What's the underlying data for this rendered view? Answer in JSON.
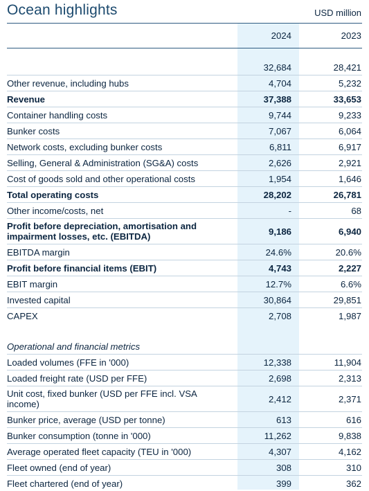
{
  "header": {
    "title": "Ocean highlights",
    "unit": "USD million"
  },
  "columns": [
    "2024",
    "2023"
  ],
  "rows": [
    {
      "label": "",
      "v2024": "32,684",
      "v2023": "28,421",
      "bold": false
    },
    {
      "label": "Other revenue, including hubs",
      "v2024": "4,704",
      "v2023": "5,232",
      "bold": false
    },
    {
      "label": "Revenue",
      "v2024": "37,388",
      "v2023": "33,653",
      "bold": true
    },
    {
      "label": "Container handling costs",
      "v2024": "9,744",
      "v2023": "9,233",
      "bold": false
    },
    {
      "label": "Bunker costs",
      "v2024": "7,067",
      "v2023": "6,064",
      "bold": false
    },
    {
      "label": "Network costs, excluding bunker costs",
      "v2024": "6,811",
      "v2023": "6,917",
      "bold": false
    },
    {
      "label": "Selling, General & Administration (SG&A) costs",
      "v2024": "2,626",
      "v2023": "2,921",
      "bold": false
    },
    {
      "label": "Cost of goods sold and other operational costs",
      "v2024": "1,954",
      "v2023": "1,646",
      "bold": false
    },
    {
      "label": "Total operating costs",
      "v2024": "28,202",
      "v2023": "26,781",
      "bold": true
    },
    {
      "label": "Other income/costs, net",
      "v2024": "-",
      "v2023": "68",
      "bold": false
    },
    {
      "label": "Profit before depreciation, amortisation and impairment losses, etc. (EBITDA)",
      "v2024": "9,186",
      "v2023": "6,940",
      "bold": true
    },
    {
      "label": "EBITDA margin",
      "v2024": "24.6%",
      "v2023": "20.6%",
      "bold": false
    },
    {
      "label": "Profit before financial items (EBIT)",
      "v2024": "4,743",
      "v2023": "2,227",
      "bold": true
    },
    {
      "label": "EBIT margin",
      "v2024": "12.7%",
      "v2023": "6.6%",
      "bold": false
    },
    {
      "label": "Invested capital",
      "v2024": "30,864",
      "v2023": "29,851",
      "bold": false
    },
    {
      "label": "CAPEX",
      "v2024": "2,708",
      "v2023": "1,987",
      "bold": false
    }
  ],
  "section_title": "Operational and financial metrics",
  "metrics": [
    {
      "label": "Loaded volumes (FFE in '000)",
      "v2024": "12,338",
      "v2023": "11,904"
    },
    {
      "label": "Loaded freight rate (USD per FFE)",
      "v2024": "2,698",
      "v2023": "2,313"
    },
    {
      "label": "Unit cost, fixed bunker (USD per FFE incl. VSA income)",
      "v2024": "2,412",
      "v2023": "2,371"
    },
    {
      "label": "Bunker price, average (USD per tonne)",
      "v2024": "613",
      "v2023": "616"
    },
    {
      "label": "Bunker consumption (tonne in '000)",
      "v2024": "11,262",
      "v2023": "9,838"
    },
    {
      "label": "Average operated fleet capacity (TEU in '000)",
      "v2024": "4,307",
      "v2023": "4,162"
    },
    {
      "label": "Fleet owned (end of year)",
      "v2024": "308",
      "v2023": "310"
    },
    {
      "label": "Fleet chartered (end of year)",
      "v2024": "399",
      "v2023": "362"
    }
  ]
}
